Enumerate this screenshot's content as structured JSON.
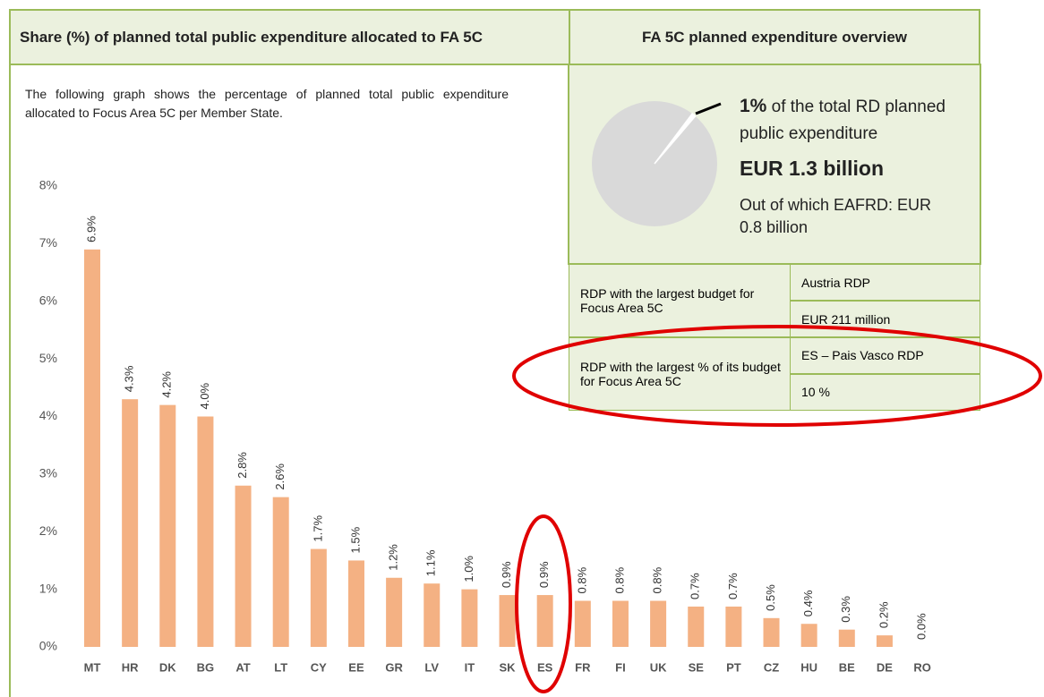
{
  "left": {
    "title": "Share (%) of planned total public expenditure allocated to FA 5C",
    "description": "The following graph shows the percentage of planned total public expenditure allocated to Focus Area 5C per Member State."
  },
  "chart_data": [
    {
      "type": "bar",
      "categories": [
        "MT",
        "HR",
        "DK",
        "BG",
        "AT",
        "LT",
        "CY",
        "EE",
        "GR",
        "LV",
        "IT",
        "SK",
        "ES",
        "FR",
        "FI",
        "UK",
        "SE",
        "PT",
        "CZ",
        "HU",
        "BE",
        "DE",
        "RO"
      ],
      "values": [
        6.9,
        4.3,
        4.2,
        4.0,
        2.8,
        2.6,
        1.7,
        1.5,
        1.2,
        1.1,
        1.0,
        0.9,
        0.9,
        0.8,
        0.8,
        0.8,
        0.7,
        0.7,
        0.5,
        0.4,
        0.3,
        0.2,
        0.0
      ],
      "value_labels": [
        "6.9%",
        "4.3%",
        "4.2%",
        "4.0%",
        "2.8%",
        "2.6%",
        "1.7%",
        "1.5%",
        "1.2%",
        "1.1%",
        "1.0%",
        "0.9%",
        "0.9%",
        "0.8%",
        "0.8%",
        "0.8%",
        "0.7%",
        "0.7%",
        "0.5%",
        "0.4%",
        "0.3%",
        "0.2%",
        "0.0%"
      ],
      "color": "#f4b183",
      "ylim": [
        0,
        8
      ],
      "yticks": [
        {
          "value": 0,
          "label": "0%"
        },
        {
          "value": 1,
          "label": "1%"
        },
        {
          "value": 2,
          "label": "2%"
        },
        {
          "value": 3,
          "label": "3%"
        },
        {
          "value": 4,
          "label": "4%"
        },
        {
          "value": 5,
          "label": "5%"
        },
        {
          "value": 6,
          "label": "6%"
        },
        {
          "value": 7,
          "label": "7%"
        },
        {
          "value": 8,
          "label": "8%"
        }
      ],
      "grid": false
    },
    {
      "type": "pie",
      "values": [
        1
      ],
      "value_labels": [
        "1%"
      ],
      "color": "#d9d9d9"
    }
  ],
  "overview": {
    "title": "FA 5C planned expenditure overview",
    "share_text": "of the total RD planned public expenditure",
    "total": "EUR 1.3 billion",
    "eafrd": "Out of which EAFRD: EUR 0.8 billion",
    "rows": [
      {
        "label": "RDP with the largest budget for Focus Area 5C",
        "values": [
          "Austria RDP",
          "EUR 211 million"
        ]
      },
      {
        "label": "RDP with the largest % of its budget for Focus Area 5C",
        "values": [
          "ES – Pais Vasco RDP",
          "10 %"
        ]
      }
    ]
  }
}
